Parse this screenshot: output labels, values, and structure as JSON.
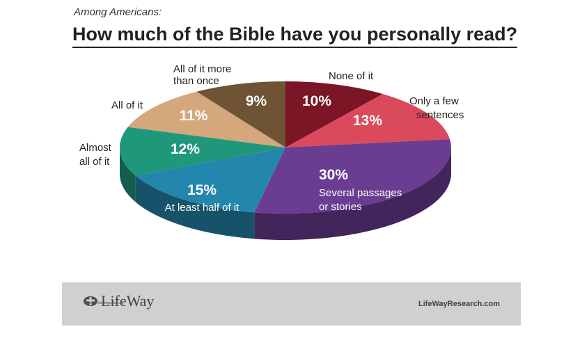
{
  "header": {
    "subtitle": "Among Americans:",
    "title": "How much of the Bible have you personally read?"
  },
  "chart_data": {
    "type": "pie",
    "title": "How much of the Bible have you personally read?",
    "subtitle": "Among Americans:",
    "unit": "%",
    "slices": [
      {
        "label": "None of it",
        "value": 10,
        "display": "10%",
        "color": "#7a1626"
      },
      {
        "label": "Only a few sentences",
        "value": 13,
        "display": "13%",
        "color": "#db4a5c"
      },
      {
        "label": "Several passages or stories",
        "value": 30,
        "display": "30%",
        "color": "#6a3c92"
      },
      {
        "label": "At least half of it",
        "value": 15,
        "display": "15%",
        "color": "#2386ac"
      },
      {
        "label": "Almost all of it",
        "value": 12,
        "display": "12%",
        "color": "#1f977a"
      },
      {
        "label": "All of it",
        "value": 11,
        "display": "11%",
        "color": "#d5a77c"
      },
      {
        "label": "All of it more than once",
        "value": 9,
        "display": "9%",
        "color": "#6e5434"
      }
    ]
  },
  "footer": {
    "logo_text": "LifeWay",
    "logo_tagline": "Biblical Solutions for Life",
    "logo_icon": "lifeway-cross-icon",
    "site": "LifeWayResearch.com"
  }
}
